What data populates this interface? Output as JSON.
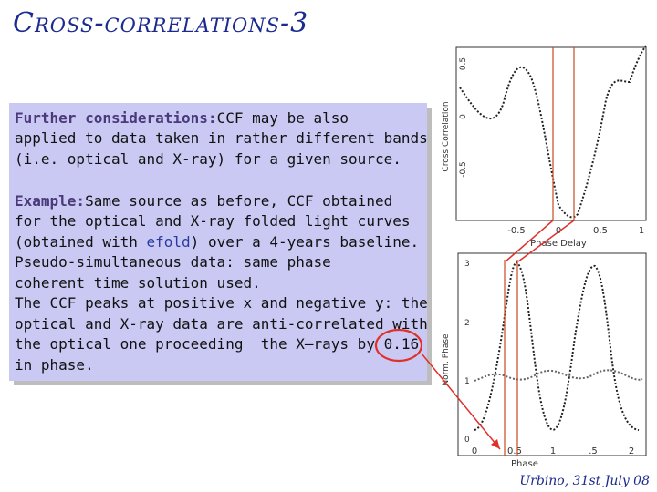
{
  "slide": {
    "title": "Cross-correlations-3",
    "footer": "Urbino, 31st July 08"
  },
  "paragraph1": {
    "heading": "Further considerations:",
    "lines": [
      "CCF may be also",
      "applied to data taken in rather different bands",
      "(i.e. optical and X-ray) for a given source."
    ]
  },
  "paragraph2": {
    "heading": "Example:",
    "line1": "Same source as before, CCF obtained",
    "line2": "for the optical and X-ray folded light curves",
    "line3_pre": "(obtained with ",
    "line3_link": "efold",
    "line3_post": ") over a 4-years baseline.",
    "lines_rest": [
      "Pseudo-simultaneous data: same phase",
      "coherent time solution used.",
      "The CCF peaks at positive x and negative y: the",
      "optical and X-ray data are anti-correlated with",
      "the optical one proceeding  the X—rays by",
      "in phase."
    ],
    "highlight_value": "0.16"
  },
  "top_plot": {
    "ylabel": "Cross Correlation",
    "xlabel": "Phase Delay",
    "yticks": [
      "0.5",
      "0",
      "-0.5"
    ],
    "xticks": [
      "-0.5",
      "0",
      "0.5",
      "1"
    ]
  },
  "bottom_plot": {
    "ylabel": "Norm. Phase",
    "xlabel": "Phase",
    "yticks": [
      "3",
      "2",
      "1",
      "0"
    ],
    "xticks": [
      "0",
      "0.5",
      "1",
      ".5",
      "2"
    ]
  },
  "colors": {
    "title": "#1b2a8f",
    "box": "#c9c9f3",
    "marker_lines": "#cc4a1e",
    "circle": "#e0302a"
  }
}
